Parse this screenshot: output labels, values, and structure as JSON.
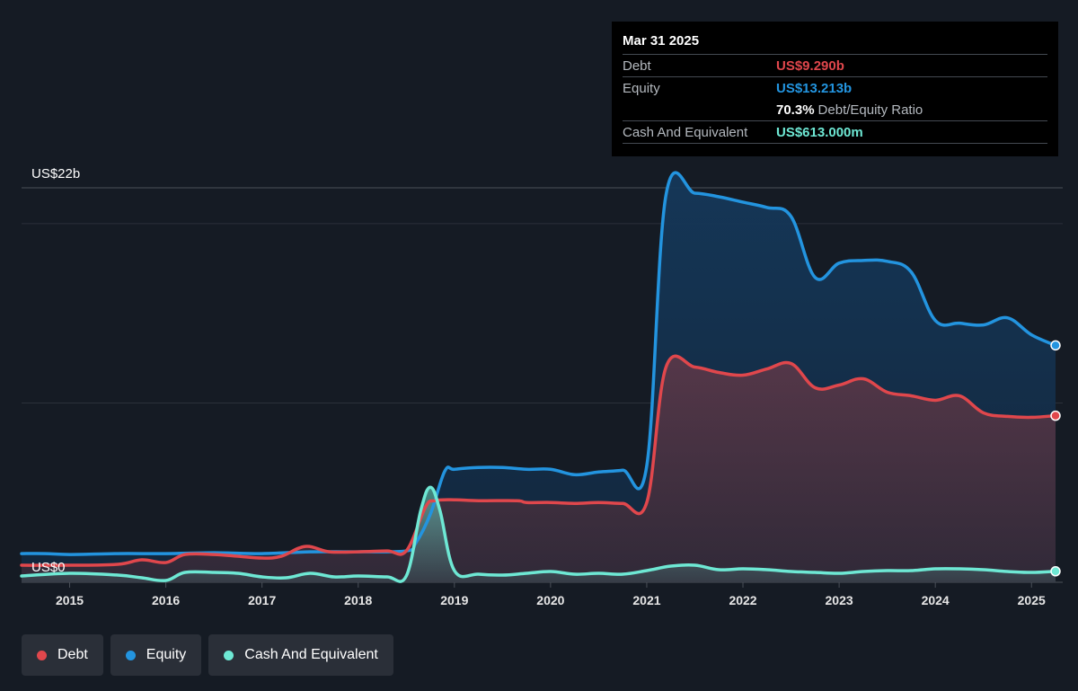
{
  "tooltip": {
    "date": "Mar 31 2025",
    "debt_label": "Debt",
    "debt_value": "US$9.290b",
    "equity_label": "Equity",
    "equity_value": "US$13.213b",
    "ratio_value": "70.3%",
    "ratio_label": "Debt/Equity Ratio",
    "cash_label": "Cash And Equivalent",
    "cash_value": "US$613.000m"
  },
  "legend": {
    "debt": "Debt",
    "equity": "Equity",
    "cash": "Cash And Equivalent"
  },
  "colors": {
    "debt": "#e0474c",
    "equity": "#2394df",
    "cash": "#6ee8d4",
    "background": "#151b24"
  },
  "chart_data": {
    "type": "area",
    "y_top_label": "US$22b",
    "y_bottom_label": "US$0",
    "ylim": [
      0,
      22
    ],
    "xlim": [
      2014.5,
      2025.25
    ],
    "x_ticks": [
      "2015",
      "2016",
      "2017",
      "2018",
      "2019",
      "2020",
      "2021",
      "2022",
      "2023",
      "2024",
      "2025"
    ],
    "series": [
      {
        "name": "Debt",
        "key": "debt",
        "points": [
          [
            2014.5,
            0.95
          ],
          [
            2015.0,
            0.95
          ],
          [
            2015.5,
            1.0
          ],
          [
            2015.75,
            1.25
          ],
          [
            2016.0,
            1.1
          ],
          [
            2016.2,
            1.55
          ],
          [
            2016.5,
            1.55
          ],
          [
            2016.75,
            1.45
          ],
          [
            2017.0,
            1.35
          ],
          [
            2017.2,
            1.45
          ],
          [
            2017.45,
            2.0
          ],
          [
            2017.7,
            1.7
          ],
          [
            2018.0,
            1.7
          ],
          [
            2018.3,
            1.75
          ],
          [
            2018.5,
            1.75
          ],
          [
            2018.7,
            4.2
          ],
          [
            2018.8,
            4.55
          ],
          [
            2019.0,
            4.6
          ],
          [
            2019.25,
            4.55
          ],
          [
            2019.65,
            4.55
          ],
          [
            2019.75,
            4.45
          ],
          [
            2020.0,
            4.45
          ],
          [
            2020.25,
            4.4
          ],
          [
            2020.5,
            4.45
          ],
          [
            2020.75,
            4.4
          ],
          [
            2021.0,
            4.45
          ],
          [
            2021.2,
            12.0
          ],
          [
            2021.5,
            12.0
          ],
          [
            2021.75,
            11.7
          ],
          [
            2022.0,
            11.55
          ],
          [
            2022.25,
            11.9
          ],
          [
            2022.5,
            12.2
          ],
          [
            2022.75,
            10.85
          ],
          [
            2023.0,
            11.0
          ],
          [
            2023.25,
            11.35
          ],
          [
            2023.5,
            10.6
          ],
          [
            2023.75,
            10.4
          ],
          [
            2024.0,
            10.15
          ],
          [
            2024.25,
            10.4
          ],
          [
            2024.5,
            9.45
          ],
          [
            2024.75,
            9.25
          ],
          [
            2025.0,
            9.2
          ],
          [
            2025.25,
            9.29
          ]
        ]
      },
      {
        "name": "Equity",
        "key": "equity",
        "points": [
          [
            2014.5,
            1.6
          ],
          [
            2014.75,
            1.6
          ],
          [
            2015.0,
            1.55
          ],
          [
            2015.5,
            1.6
          ],
          [
            2016.0,
            1.6
          ],
          [
            2016.5,
            1.65
          ],
          [
            2017.0,
            1.6
          ],
          [
            2017.5,
            1.7
          ],
          [
            2018.0,
            1.7
          ],
          [
            2018.5,
            1.75
          ],
          [
            2018.6,
            2.2
          ],
          [
            2018.75,
            3.8
          ],
          [
            2018.9,
            6.2
          ],
          [
            2019.0,
            6.3
          ],
          [
            2019.25,
            6.4
          ],
          [
            2019.5,
            6.4
          ],
          [
            2019.75,
            6.3
          ],
          [
            2020.0,
            6.3
          ],
          [
            2020.25,
            6.0
          ],
          [
            2020.5,
            6.15
          ],
          [
            2020.75,
            6.25
          ],
          [
            2021.0,
            6.5
          ],
          [
            2021.2,
            21.6
          ],
          [
            2021.5,
            21.7
          ],
          [
            2021.75,
            21.5
          ],
          [
            2022.0,
            21.2
          ],
          [
            2022.25,
            20.9
          ],
          [
            2022.5,
            20.4
          ],
          [
            2022.75,
            17.0
          ],
          [
            2023.0,
            17.8
          ],
          [
            2023.25,
            17.95
          ],
          [
            2023.5,
            17.9
          ],
          [
            2023.75,
            17.3
          ],
          [
            2024.0,
            14.6
          ],
          [
            2024.25,
            14.45
          ],
          [
            2024.5,
            14.35
          ],
          [
            2024.75,
            14.75
          ],
          [
            2025.0,
            13.8
          ],
          [
            2025.25,
            13.213
          ]
        ]
      },
      {
        "name": "Cash And Equivalent",
        "key": "cash",
        "points": [
          [
            2014.5,
            0.35
          ],
          [
            2015.0,
            0.5
          ],
          [
            2015.5,
            0.4
          ],
          [
            2015.75,
            0.25
          ],
          [
            2016.0,
            0.1
          ],
          [
            2016.2,
            0.55
          ],
          [
            2016.5,
            0.55
          ],
          [
            2016.75,
            0.5
          ],
          [
            2017.0,
            0.3
          ],
          [
            2017.25,
            0.25
          ],
          [
            2017.5,
            0.5
          ],
          [
            2017.75,
            0.3
          ],
          [
            2018.0,
            0.35
          ],
          [
            2018.3,
            0.3
          ],
          [
            2018.5,
            0.35
          ],
          [
            2018.65,
            4.0
          ],
          [
            2018.75,
            5.3
          ],
          [
            2018.85,
            4.0
          ],
          [
            2019.0,
            0.65
          ],
          [
            2019.25,
            0.45
          ],
          [
            2019.5,
            0.4
          ],
          [
            2019.75,
            0.5
          ],
          [
            2020.0,
            0.6
          ],
          [
            2020.25,
            0.45
          ],
          [
            2020.5,
            0.5
          ],
          [
            2020.75,
            0.45
          ],
          [
            2021.0,
            0.65
          ],
          [
            2021.25,
            0.9
          ],
          [
            2021.5,
            0.95
          ],
          [
            2021.75,
            0.7
          ],
          [
            2022.0,
            0.75
          ],
          [
            2022.25,
            0.7
          ],
          [
            2022.5,
            0.6
          ],
          [
            2022.75,
            0.55
          ],
          [
            2023.0,
            0.5
          ],
          [
            2023.25,
            0.6
          ],
          [
            2023.5,
            0.65
          ],
          [
            2023.75,
            0.65
          ],
          [
            2024.0,
            0.75
          ],
          [
            2024.25,
            0.75
          ],
          [
            2024.5,
            0.7
          ],
          [
            2024.75,
            0.6
          ],
          [
            2025.0,
            0.55
          ],
          [
            2025.25,
            0.613
          ]
        ]
      }
    ]
  }
}
